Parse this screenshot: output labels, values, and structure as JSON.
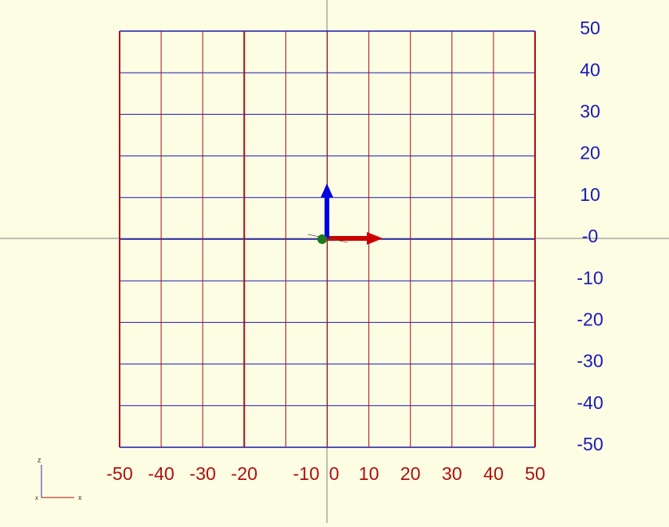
{
  "colors": {
    "background": "#fdfde4",
    "grid_x_lines": "#aa1010",
    "grid_y_lines": "#1a1ab0",
    "x_tick_labels": "#b01010",
    "y_tick_labels": "#1a1ab8",
    "axis_lines": "#808080",
    "x_arrow": "#cc0000",
    "y_arrow": "#0000e0",
    "origin_marker": "#1a7a1a"
  },
  "grid": {
    "x_tick_labels": [
      "-50",
      "-40",
      "-30",
      "-20",
      "-10",
      "0",
      "10",
      "20",
      "30",
      "40",
      "50"
    ],
    "y_tick_labels": [
      "50",
      "40",
      "30",
      "20",
      "10",
      "-0",
      "-10",
      "-20",
      "-30",
      "-40",
      "-50"
    ]
  },
  "axes": {
    "x_arrow_icon": "x-axis-arrow-icon",
    "y_arrow_icon": "y-axis-arrow-icon",
    "origin_icon": "origin-dot-icon"
  },
  "orientation_gizmo": {
    "z_label": "z",
    "x_label": "x",
    "x_label_2": "x"
  }
}
